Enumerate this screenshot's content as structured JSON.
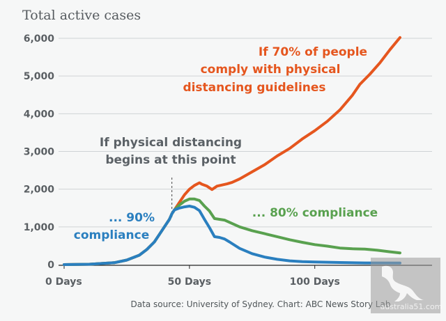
{
  "chart_data": {
    "type": "line",
    "title": "Total active cases",
    "xlabel": "",
    "ylabel": "",
    "xlim": [
      0,
      134
    ],
    "ylim": [
      0,
      6000
    ],
    "xticks": [
      0,
      50,
      100
    ],
    "xtick_labels": [
      "0 Days",
      "50 Days",
      "100 Days"
    ],
    "yticks": [
      0,
      1000,
      2000,
      3000,
      4000,
      5000,
      6000
    ],
    "ytick_labels": [
      "0",
      "1,000",
      "2,000",
      "3,000",
      "4,000",
      "5,000",
      "6,000"
    ],
    "grid": true,
    "intervention_day": 43,
    "series": [
      {
        "color": "#e5561e",
        "x": [
          0,
          10,
          20,
          25,
          30,
          33,
          36,
          38,
          40,
          42,
          43,
          44,
          46,
          48,
          50,
          52,
          54,
          55,
          57,
          59,
          61,
          63,
          65,
          67,
          70,
          75,
          80,
          85,
          90,
          95,
          100,
          105,
          110,
          115,
          118,
          122,
          126,
          130,
          134
        ],
        "y": [
          0,
          10,
          50,
          120,
          250,
          400,
          600,
          800,
          1000,
          1200,
          1350,
          1450,
          1650,
          1850,
          2000,
          2100,
          2170,
          2130,
          2080,
          1990,
          2080,
          2110,
          2140,
          2180,
          2270,
          2460,
          2650,
          2880,
          3080,
          3330,
          3550,
          3800,
          4100,
          4490,
          4780,
          5050,
          5350,
          5700,
          6020
        ]
      },
      {
        "color": "#59a14f",
        "x": [
          0,
          10,
          20,
          25,
          30,
          33,
          36,
          38,
          40,
          42,
          43,
          44,
          46,
          48,
          50,
          52,
          54,
          56,
          58,
          60,
          62,
          64,
          66,
          70,
          75,
          80,
          85,
          90,
          95,
          100,
          105,
          110,
          115,
          120,
          125,
          130,
          134
        ],
        "y": [
          0,
          10,
          50,
          120,
          250,
          400,
          600,
          800,
          1000,
          1200,
          1350,
          1450,
          1580,
          1680,
          1740,
          1740,
          1700,
          1550,
          1420,
          1220,
          1200,
          1180,
          1120,
          1000,
          900,
          820,
          740,
          660,
          590,
          530,
          490,
          440,
          420,
          410,
          380,
          340,
          310
        ]
      },
      {
        "color": "#2a7fbf",
        "x": [
          0,
          10,
          20,
          25,
          30,
          33,
          36,
          38,
          40,
          42,
          43,
          44,
          46,
          48,
          50,
          52,
          54,
          56,
          58,
          60,
          62,
          64,
          66,
          70,
          75,
          80,
          85,
          90,
          95,
          100,
          110,
          120,
          134
        ],
        "y": [
          0,
          10,
          50,
          120,
          250,
          400,
          600,
          800,
          1000,
          1200,
          1350,
          1450,
          1500,
          1530,
          1550,
          1520,
          1430,
          1200,
          980,
          740,
          720,
          680,
          600,
          430,
          290,
          200,
          140,
          100,
          80,
          70,
          55,
          45,
          40
        ]
      }
    ],
    "annotations": [
      {
        "lines": [
          "If 70% of people",
          "comply with physical",
          "distancing guidelines"
        ],
        "color": "#e5561e"
      },
      {
        "lines": [
          "If physical distancing",
          "begins at this point"
        ],
        "color": "#5b6166"
      },
      {
        "lines": [
          "... 90%",
          "compliance"
        ],
        "color": "#2a7fbf"
      },
      {
        "lines": [
          "... 80% compliance"
        ],
        "color": "#59a14f"
      }
    ],
    "source": "Data source: University of Sydney. Chart: ABC News Story Lab"
  },
  "watermark": "australia51.com"
}
